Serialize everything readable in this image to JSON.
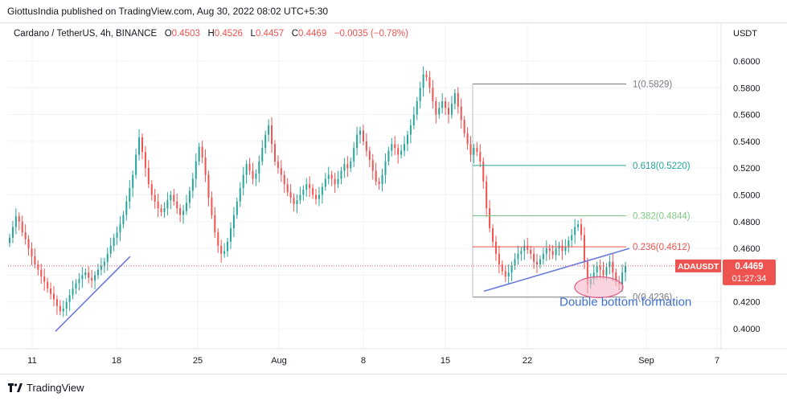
{
  "header": {
    "publisher": "GiottusIndia published on TradingView.com, Aug 30, 2022 08:02 UTC+5:30"
  },
  "legend": {
    "symbol": "Cardano / TetherUS, 4h, BINANCE",
    "o_label": "O",
    "o_value": "0.4503",
    "h_label": "H",
    "h_value": "0.4526",
    "l_label": "L",
    "l_value": "0.4457",
    "c_label": "C",
    "c_value": "0.4469",
    "change": "−0.0035 (−0.78%)"
  },
  "footer": {
    "brand": "TradingView"
  },
  "colors": {
    "up": "#26a69a",
    "down": "#ef5350",
    "trend": "#6b7bdb",
    "fib1": "#787b86",
    "fib618": "#26a69a",
    "fib382": "#81c784",
    "fib236": "#ef5350",
    "fib0": "#787b86"
  },
  "chart_data": {
    "type": "candlestick",
    "currency": "USDT",
    "ylim": [
      0.39,
      0.61
    ],
    "yticks": [
      "0.6000",
      "0.5800",
      "0.5600",
      "0.5400",
      "0.5200",
      "0.5000",
      "0.4800",
      "0.4600",
      "0.4400",
      "0.4200",
      "0.4000"
    ],
    "xticks": [
      "11",
      "18",
      "25",
      "Aug",
      "8",
      "15",
      "22",
      "Sep",
      "7"
    ],
    "price_label": {
      "symbol": "ADAUSDT",
      "price": "0.4469",
      "countdown": "01:27:34",
      "value": 0.4469
    },
    "fib_levels": [
      {
        "label": "1(0.5829)",
        "value": 0.5829
      },
      {
        "label": "0.618(0.5220)",
        "value": 0.522
      },
      {
        "label": "0.382(0.4844)",
        "value": 0.4844
      },
      {
        "label": "0.236(0.4612)",
        "value": 0.4612
      },
      {
        "label": "0(0.4236)",
        "value": 0.4236
      }
    ],
    "annotation": "Double bottom formation",
    "closes_4h": [
      0.468,
      0.476,
      0.484,
      0.48,
      0.472,
      0.467,
      0.46,
      0.454,
      0.448,
      0.444,
      0.439,
      0.435,
      0.43,
      0.426,
      0.422,
      0.417,
      0.413,
      0.415,
      0.42,
      0.425,
      0.43,
      0.434,
      0.437,
      0.44,
      0.442,
      0.438,
      0.436,
      0.44,
      0.444,
      0.447,
      0.45,
      0.456,
      0.462,
      0.468,
      0.472,
      0.478,
      0.485,
      0.495,
      0.505,
      0.515,
      0.53,
      0.543,
      0.532,
      0.52,
      0.508,
      0.5,
      0.495,
      0.49,
      0.487,
      0.49,
      0.496,
      0.5,
      0.495,
      0.49,
      0.485,
      0.488,
      0.494,
      0.503,
      0.512,
      0.525,
      0.536,
      0.528,
      0.515,
      0.498,
      0.485,
      0.472,
      0.462,
      0.456,
      0.458,
      0.465,
      0.475,
      0.485,
      0.495,
      0.505,
      0.515,
      0.523,
      0.518,
      0.512,
      0.516,
      0.525,
      0.535,
      0.545,
      0.552,
      0.538,
      0.525,
      0.52,
      0.515,
      0.508,
      0.502,
      0.498,
      0.493,
      0.496,
      0.5,
      0.504,
      0.508,
      0.505,
      0.5,
      0.497,
      0.5,
      0.506,
      0.512,
      0.515,
      0.512,
      0.508,
      0.512,
      0.518,
      0.523,
      0.52,
      0.525,
      0.535,
      0.545,
      0.548,
      0.54,
      0.533,
      0.526,
      0.518,
      0.51,
      0.508,
      0.515,
      0.525,
      0.533,
      0.538,
      0.535,
      0.53,
      0.533,
      0.538,
      0.545,
      0.552,
      0.56,
      0.57,
      0.58,
      0.59,
      0.588,
      0.58,
      0.57,
      0.56,
      0.565,
      0.57,
      0.565,
      0.56,
      0.568,
      0.576,
      0.566,
      0.556,
      0.546,
      0.538,
      0.53,
      0.535,
      0.532,
      0.525,
      0.51,
      0.49,
      0.475,
      0.465,
      0.456,
      0.448,
      0.443,
      0.439,
      0.442,
      0.447,
      0.452,
      0.456,
      0.458,
      0.462,
      0.459,
      0.456,
      0.45,
      0.448,
      0.452,
      0.456,
      0.46,
      0.458,
      0.455,
      0.46,
      0.462,
      0.458,
      0.461,
      0.466,
      0.47,
      0.476,
      0.478,
      0.47,
      0.45,
      0.433,
      0.437,
      0.442,
      0.447,
      0.444,
      0.44,
      0.446,
      0.45,
      0.442,
      0.435,
      0.433,
      0.442,
      0.4469
    ]
  }
}
